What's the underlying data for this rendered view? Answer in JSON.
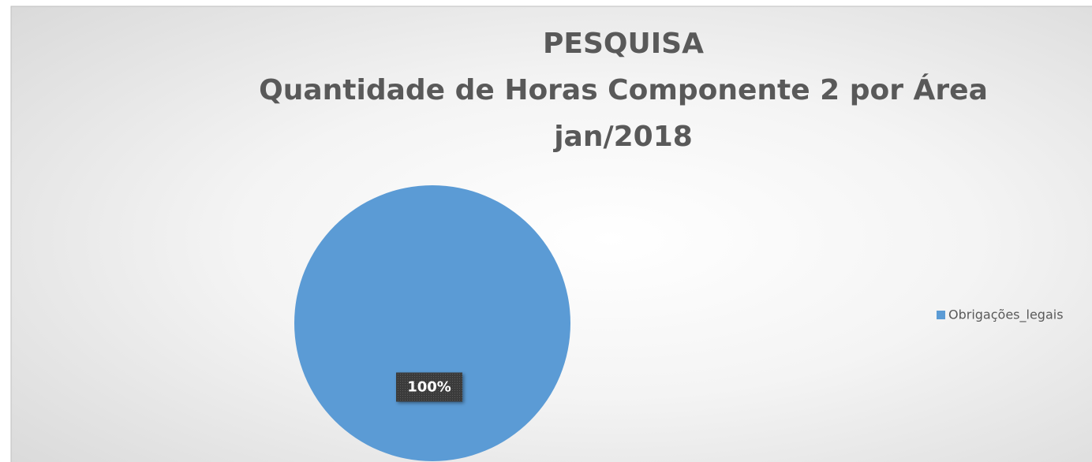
{
  "chart_data": {
    "type": "pie",
    "title": [
      "PESQUISA",
      "Quantidade de Horas Componente 2 por Área",
      "jan/2018"
    ],
    "categories": [
      "Obrigações_legais"
    ],
    "values": [
      100
    ],
    "value_labels": [
      "100%"
    ],
    "colors": [
      "#5b9bd5"
    ],
    "legend": "right"
  }
}
